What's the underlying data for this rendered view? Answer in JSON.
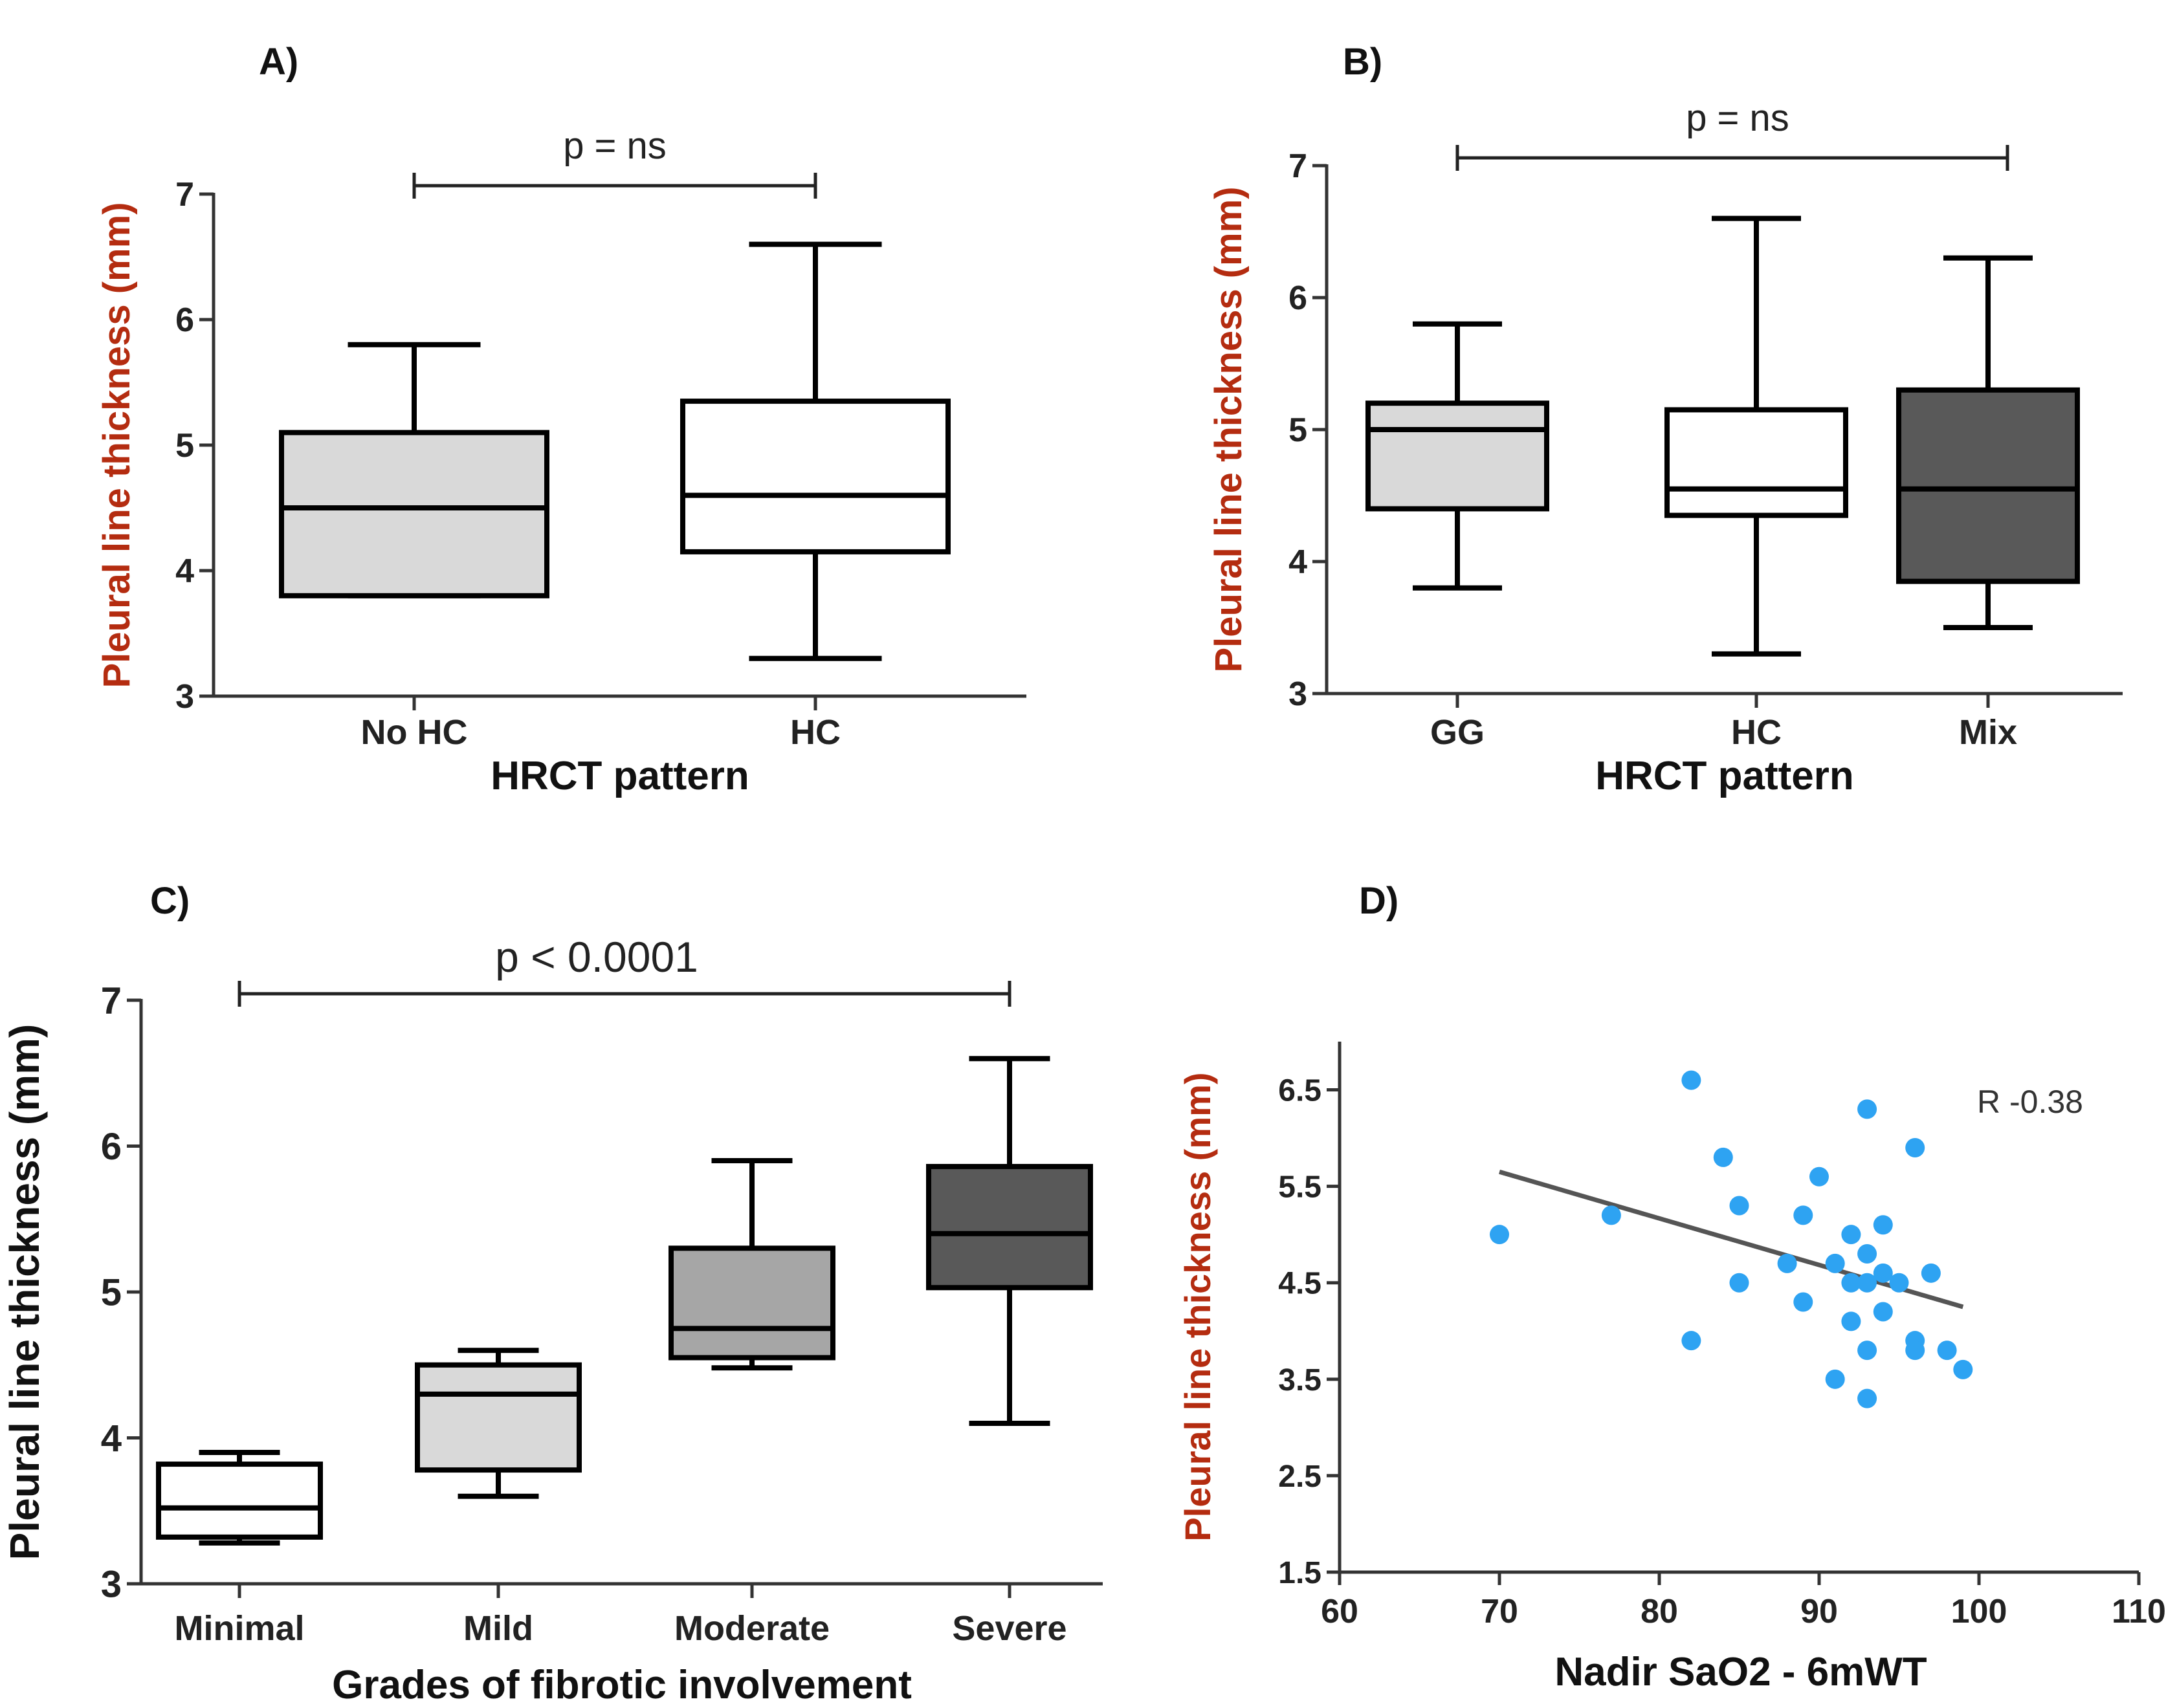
{
  "chart_data": [
    {
      "panel": "A)",
      "type": "box",
      "xlabel": "HRCT pattern",
      "ylabel": "Pleural line thickness (mm)",
      "ylim": [
        3,
        7
      ],
      "yticks": [
        "3",
        "4",
        "5",
        "6",
        "7"
      ],
      "significance": "p = ns",
      "categories": [
        "No HC",
        "HC"
      ],
      "boxes": [
        {
          "label": "No HC",
          "min": 3.8,
          "q1": 3.8,
          "median": 4.5,
          "q3": 5.1,
          "max": 5.8,
          "fill": "#d9d9d9"
        },
        {
          "label": "HC",
          "min": 3.3,
          "q1": 4.15,
          "median": 4.6,
          "q3": 5.35,
          "max": 6.6,
          "fill": "#ffffff"
        }
      ]
    },
    {
      "panel": "B)",
      "type": "box",
      "xlabel": "HRCT pattern",
      "ylabel": "Pleural line thickness (mm)",
      "ylim": [
        3,
        7
      ],
      "yticks": [
        "3",
        "4",
        "5",
        "6",
        "7"
      ],
      "significance": "p = ns",
      "categories": [
        "GG",
        "HC",
        "Mix"
      ],
      "boxes": [
        {
          "label": "GG",
          "min": 3.8,
          "q1": 4.4,
          "median": 5.0,
          "q3": 5.2,
          "max": 5.8,
          "fill": "#d9d9d9"
        },
        {
          "label": "HC",
          "min": 3.3,
          "q1": 4.35,
          "median": 4.55,
          "q3": 5.15,
          "max": 6.6,
          "fill": "#ffffff"
        },
        {
          "label": "Mix",
          "min": 3.5,
          "q1": 3.85,
          "median": 4.55,
          "q3": 5.3,
          "max": 6.3,
          "fill": "#595959"
        }
      ]
    },
    {
      "panel": "C)",
      "type": "box",
      "xlabel": "Grades of fibrotic involvement",
      "ylabel": "Pleural line thickness (mm)",
      "ylim": [
        3,
        7
      ],
      "yticks": [
        "3",
        "4",
        "5",
        "6",
        "7"
      ],
      "significance": "p < 0.0001",
      "categories": [
        "Minimal",
        "Mild",
        "Moderate",
        "Severe"
      ],
      "boxes": [
        {
          "label": "Minimal",
          "min": 3.28,
          "q1": 3.32,
          "median": 3.52,
          "q3": 3.82,
          "max": 3.9,
          "fill": "#ffffff"
        },
        {
          "label": "Mild",
          "min": 3.6,
          "q1": 3.78,
          "median": 4.3,
          "q3": 4.5,
          "max": 4.6,
          "fill": "#d9d9d9"
        },
        {
          "label": "Moderate",
          "min": 4.48,
          "q1": 4.55,
          "median": 4.75,
          "q3": 5.3,
          "max": 5.9,
          "fill": "#a6a6a6"
        },
        {
          "label": "Severe",
          "min": 4.1,
          "q1": 5.03,
          "median": 5.4,
          "q3": 5.86,
          "max": 6.6,
          "fill": "#595959"
        }
      ]
    },
    {
      "panel": "D)",
      "type": "scatter",
      "xlabel": "Nadir SaO2 - 6mWT",
      "ylabel": "Pleural line thickness (mm)",
      "xlim": [
        60,
        110
      ],
      "ylim": [
        1.5,
        7
      ],
      "xticks": [
        "60",
        "70",
        "80",
        "90",
        "100",
        "110"
      ],
      "yticks": [
        "1.5",
        "2.5",
        "3.5",
        "4.5",
        "5.5",
        "6.5"
      ],
      "annotation": "R -0.38",
      "point_color": "#2ea3f2",
      "trend_line": {
        "x": [
          70,
          99
        ],
        "y": [
          5.65,
          4.25
        ]
      },
      "points": [
        {
          "x": 70,
          "y": 5.0
        },
        {
          "x": 77,
          "y": 5.2
        },
        {
          "x": 82,
          "y": 6.6
        },
        {
          "x": 82,
          "y": 3.9
        },
        {
          "x": 84,
          "y": 5.8
        },
        {
          "x": 85,
          "y": 5.3
        },
        {
          "x": 85,
          "y": 4.5
        },
        {
          "x": 88,
          "y": 4.7
        },
        {
          "x": 89,
          "y": 5.2
        },
        {
          "x": 89,
          "y": 4.3
        },
        {
          "x": 90,
          "y": 5.6
        },
        {
          "x": 91,
          "y": 4.7
        },
        {
          "x": 91,
          "y": 3.5
        },
        {
          "x": 92,
          "y": 5.0
        },
        {
          "x": 92,
          "y": 4.5
        },
        {
          "x": 92,
          "y": 4.1
        },
        {
          "x": 93,
          "y": 6.3
        },
        {
          "x": 93,
          "y": 4.8
        },
        {
          "x": 93,
          "y": 4.5
        },
        {
          "x": 93,
          "y": 3.8
        },
        {
          "x": 93,
          "y": 3.3
        },
        {
          "x": 94,
          "y": 5.1
        },
        {
          "x": 94,
          "y": 4.6
        },
        {
          "x": 94,
          "y": 4.2
        },
        {
          "x": 95,
          "y": 4.5
        },
        {
          "x": 96,
          "y": 5.9
        },
        {
          "x": 96,
          "y": 3.9
        },
        {
          "x": 96,
          "y": 3.8
        },
        {
          "x": 97,
          "y": 4.6
        },
        {
          "x": 98,
          "y": 3.8
        },
        {
          "x": 99,
          "y": 3.6
        }
      ]
    }
  ]
}
